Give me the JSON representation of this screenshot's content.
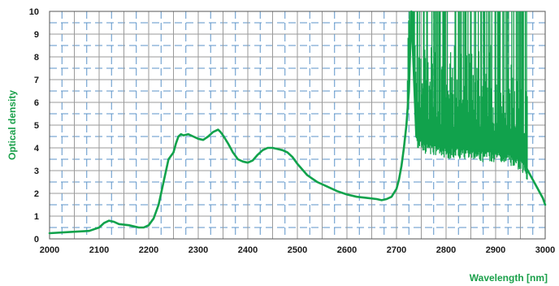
{
  "chart_data": {
    "type": "line",
    "xlabel": "Wavelength [nm]",
    "ylabel": "Optical density",
    "xlim": [
      2000,
      3000
    ],
    "ylim": [
      0,
      10
    ],
    "x_ticks": [
      "2000",
      "2100",
      "2200",
      "2300",
      "2400",
      "2500",
      "2600",
      "2700",
      "2800",
      "2900",
      "3000"
    ],
    "y_ticks": [
      "0",
      "1",
      "2",
      "3",
      "4",
      "5",
      "6",
      "7",
      "8",
      "9",
      "10"
    ],
    "grid": true,
    "colors": {
      "series": "#11a24c",
      "grid_solid": "#9a9a9a",
      "grid_dashed": "#5b93c9"
    },
    "series": [
      {
        "x": [
          2000,
          2040,
          2080,
          2100,
          2110,
          2120,
          2130,
          2140,
          2160,
          2180,
          2190,
          2200,
          2210,
          2220,
          2230,
          2240,
          2250,
          2255,
          2260,
          2265,
          2270,
          2280,
          2290,
          2300,
          2310,
          2320,
          2330,
          2340,
          2345,
          2350,
          2360,
          2370,
          2380,
          2390,
          2400,
          2410,
          2420,
          2430,
          2440,
          2450,
          2460,
          2470,
          2480,
          2490,
          2500,
          2520,
          2540,
          2560,
          2580,
          2600,
          2620,
          2640,
          2660,
          2670,
          2680,
          2690,
          2700,
          2705,
          2710,
          2715,
          2720,
          2725,
          2730,
          2740,
          2760,
          2780,
          2800,
          2820,
          2840,
          2860,
          2880,
          2900,
          2920,
          2940,
          2955,
          2960,
          2965,
          2970,
          2975,
          2980,
          2985,
          2990,
          2995,
          3000
        ],
        "y": [
          0.25,
          0.3,
          0.35,
          0.5,
          0.7,
          0.8,
          0.75,
          0.65,
          0.6,
          0.5,
          0.5,
          0.6,
          0.9,
          1.5,
          2.5,
          3.5,
          3.8,
          4.2,
          4.5,
          4.6,
          4.55,
          4.6,
          4.5,
          4.4,
          4.35,
          4.5,
          4.7,
          4.8,
          4.7,
          4.55,
          4.2,
          3.8,
          3.5,
          3.4,
          3.35,
          3.45,
          3.7,
          3.9,
          4.0,
          4.0,
          3.95,
          3.9,
          3.8,
          3.6,
          3.3,
          2.8,
          2.5,
          2.3,
          2.1,
          1.95,
          1.85,
          1.8,
          1.75,
          1.7,
          1.75,
          1.85,
          2.2,
          2.6,
          3.2,
          4.0,
          5.0,
          6.5,
          10,
          4.5,
          4.2,
          4.1,
          4.0,
          4.0,
          3.95,
          3.9,
          3.85,
          3.85,
          3.8,
          3.6,
          3.4,
          3.2,
          3.0,
          2.8,
          2.6,
          2.4,
          2.2,
          2.0,
          1.8,
          1.5
        ]
      }
    ]
  }
}
